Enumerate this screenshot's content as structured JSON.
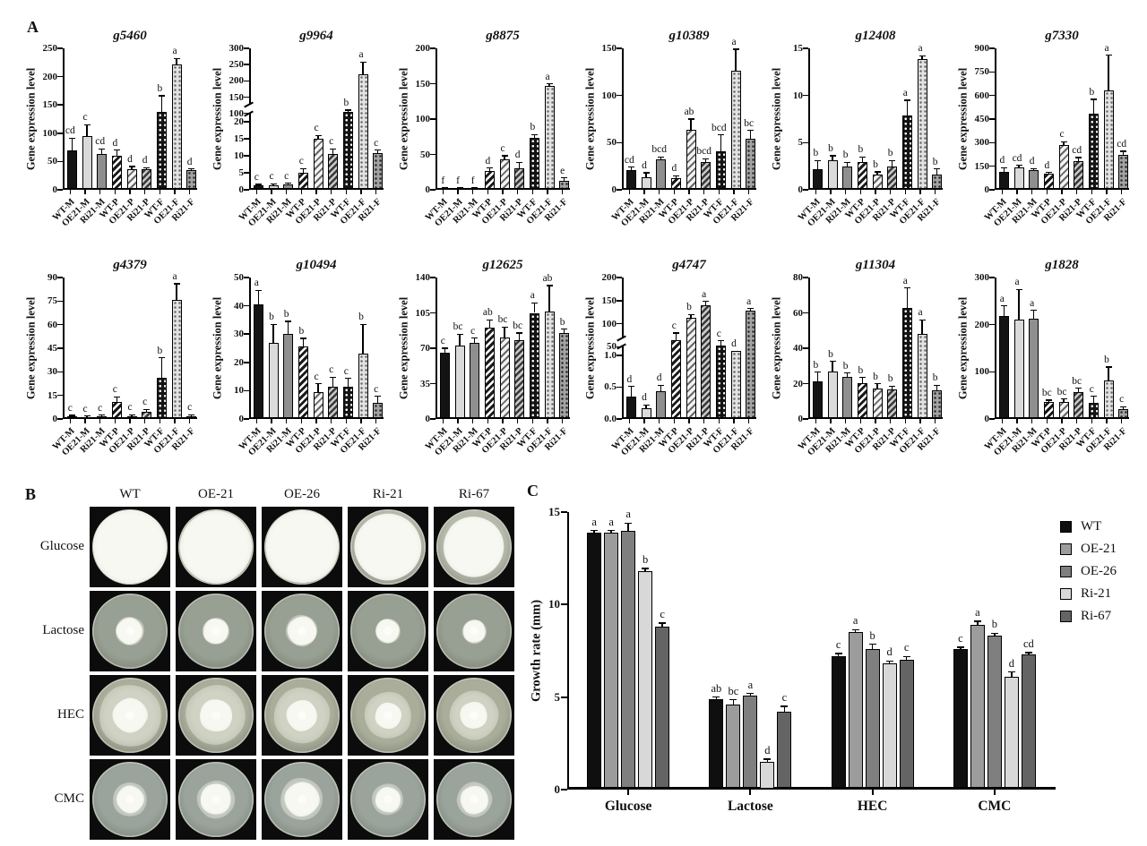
{
  "panels": {
    "a_label": "A",
    "b_label": "B",
    "c_label": "C"
  },
  "gene_expression_ylabel": "Gene expression level",
  "chart_data": [
    {
      "type": "bar",
      "title": "g5460",
      "ylabel": "Gene expression level",
      "categories": [
        "WT-M",
        "OE21-M",
        "Ri21-M",
        "WT-P",
        "OE21-P",
        "Ri21-P",
        "WT-F",
        "OE21-F",
        "Ri21-F"
      ],
      "segments": [
        {
          "min": 0,
          "max": 250,
          "frac": 1.0,
          "ticks": [
            0,
            50,
            100,
            150,
            200,
            250
          ]
        }
      ],
      "values": [
        70,
        95,
        64,
        60,
        37,
        37,
        138,
        222,
        35
      ],
      "errors": [
        21,
        20,
        8,
        10,
        4,
        2,
        28,
        10,
        2
      ],
      "letters": [
        "cd",
        "c",
        "cd",
        "d",
        "d",
        "d",
        "b",
        "a",
        "d"
      ]
    },
    {
      "type": "bar",
      "title": "g9964",
      "ylabel": "Gene expression level",
      "categories": [
        "WT-M",
        "OE21-M",
        "Ri21-M",
        "WT-P",
        "OE21-P",
        "Ri21-P",
        "WT-F",
        "OE21-F",
        "Ri21-F"
      ],
      "segments": [
        {
          "min": 0,
          "max": 20,
          "frac": 0.48,
          "ticks": [
            0,
            5,
            10,
            15,
            20
          ]
        },
        {
          "min": 100,
          "max": 300,
          "frac": 0.46,
          "ticks": [
            100,
            150,
            200,
            250,
            300
          ]
        }
      ],
      "values": [
        1.2,
        1.3,
        1.5,
        5,
        15,
        10.5,
        105,
        220,
        10.7
      ],
      "errors": [
        0.4,
        0.5,
        0.4,
        1.2,
        1,
        1.5,
        5,
        38,
        1
      ],
      "letters": [
        "c",
        "c",
        "c",
        "c",
        "c",
        "c",
        "b",
        "a",
        "c"
      ]
    },
    {
      "type": "bar",
      "title": "g8875",
      "ylabel": "Gene expression level",
      "categories": [
        "WT-M",
        "OE21-M",
        "Ri21-M",
        "WT-P",
        "OE21-P",
        "Ri21-P",
        "WT-F",
        "OE21-F",
        "Ri21-F"
      ],
      "segments": [
        {
          "min": 0,
          "max": 200,
          "frac": 1.0,
          "ticks": [
            0,
            50,
            100,
            150,
            200
          ]
        }
      ],
      "values": [
        2,
        2,
        2,
        27,
        43,
        31,
        74,
        147,
        13
      ],
      "errors": [
        1,
        1,
        1,
        4,
        5,
        8,
        4,
        3,
        4
      ],
      "letters": [
        "f",
        "f",
        "f",
        "d",
        "c",
        "d",
        "b",
        "a",
        "e"
      ]
    },
    {
      "type": "bar",
      "title": "g10389",
      "ylabel": "Gene expression level",
      "categories": [
        "WT-M",
        "OE21-M",
        "Ri21-M",
        "WT-P",
        "OE21-P",
        "Ri21-P",
        "WT-F",
        "OE21-F",
        "Ri21-F"
      ],
      "segments": [
        {
          "min": 0,
          "max": 150,
          "frac": 1.0,
          "ticks": [
            0,
            50,
            100,
            150
          ]
        }
      ],
      "values": [
        21,
        13,
        32,
        12,
        64,
        29,
        41,
        126,
        54
      ],
      "errors": [
        3,
        5,
        3,
        3,
        11,
        4,
        17,
        23,
        9
      ],
      "letters": [
        "cd",
        "d",
        "bcd",
        "d",
        "ab",
        "bcd",
        "bcd",
        "a",
        "bc"
      ]
    },
    {
      "type": "bar",
      "title": "g12408",
      "ylabel": "Gene expression level",
      "categories": [
        "WT-M",
        "OE21-M",
        "Ri21-M",
        "WT-P",
        "OE21-P",
        "Ri21-P",
        "WT-F",
        "OE21-F",
        "Ri21-F"
      ],
      "segments": [
        {
          "min": 0,
          "max": 15,
          "frac": 1.0,
          "ticks": [
            0,
            5,
            10,
            15
          ]
        }
      ],
      "values": [
        2.2,
        3.1,
        2.5,
        2.9,
        1.6,
        2.5,
        7.9,
        13.9,
        1.6
      ],
      "errors": [
        0.9,
        0.5,
        0.4,
        0.6,
        0.3,
        0.6,
        1.6,
        0.3,
        0.6
      ],
      "letters": [
        "b",
        "b",
        "b",
        "b",
        "b",
        "b",
        "a",
        "a",
        "b"
      ]
    },
    {
      "type": "bar",
      "title": "g7330",
      "ylabel": "Gene expression level",
      "categories": [
        "WT-M",
        "OE21-M",
        "Ri21-M",
        "WT-P",
        "OE21-P",
        "Ri21-P",
        "WT-F",
        "OE21-F",
        "Ri21-F"
      ],
      "segments": [
        {
          "min": 0,
          "max": 900,
          "frac": 1.0,
          "ticks": [
            0,
            150,
            300,
            450,
            600,
            750,
            900
          ]
        }
      ],
      "values": [
        115,
        140,
        125,
        100,
        285,
        185,
        485,
        635,
        220
      ],
      "errors": [
        25,
        15,
        10,
        10,
        20,
        20,
        90,
        220,
        25
      ],
      "letters": [
        "d",
        "cd",
        "d",
        "d",
        "c",
        "cd",
        "b",
        "a",
        "cd"
      ]
    },
    {
      "type": "bar",
      "title": "g4379",
      "ylabel": "Gene expression level",
      "categories": [
        "WT-M",
        "OE21-M",
        "Ri21-M",
        "WT-P",
        "OE21-P",
        "Ri21-P",
        "WT-F",
        "OE21-F",
        "Ri21-F"
      ],
      "segments": [
        {
          "min": 0,
          "max": 90,
          "frac": 1.0,
          "ticks": [
            0,
            15,
            30,
            45,
            60,
            75,
            90
          ]
        }
      ],
      "values": [
        1.5,
        1.3,
        1.8,
        11,
        1.8,
        4.5,
        26,
        76,
        1.8
      ],
      "errors": [
        0.8,
        0.5,
        0.6,
        3,
        0.8,
        1.5,
        13,
        10,
        0.8
      ],
      "letters": [
        "c",
        "c",
        "c",
        "c",
        "c",
        "c",
        "b",
        "a",
        "c"
      ]
    },
    {
      "type": "bar",
      "title": "g10494",
      "ylabel": "Gene expression level",
      "categories": [
        "WT-M",
        "OE21-M",
        "Ri21-M",
        "WT-P",
        "OE21-P",
        "Ri21-P",
        "WT-F",
        "OE21-F",
        "Ri21-F"
      ],
      "segments": [
        {
          "min": 0,
          "max": 50,
          "frac": 1.0,
          "ticks": [
            0,
            10,
            20,
            30,
            40,
            50
          ]
        }
      ],
      "values": [
        40.5,
        27,
        30,
        25.5,
        9.5,
        11.3,
        11.3,
        23,
        5.8
      ],
      "errors": [
        5,
        6.5,
        4.5,
        3,
        3,
        3.5,
        3,
        10.5,
        2.2
      ],
      "letters": [
        "a",
        "b",
        "b",
        "b",
        "c",
        "c",
        "c",
        "b",
        "c"
      ]
    },
    {
      "type": "bar",
      "title": "g12625",
      "ylabel": "Gene expression level",
      "categories": [
        "WT-M",
        "OE21-M",
        "Ri21-M",
        "WT-P",
        "OE21-P",
        "Ri21-P",
        "WT-F",
        "OE21-F",
        "Ri21-F"
      ],
      "segments": [
        {
          "min": 0,
          "max": 140,
          "frac": 1.0,
          "ticks": [
            0,
            35,
            70,
            105,
            140
          ]
        }
      ],
      "values": [
        66,
        73,
        75,
        90,
        81,
        78,
        105,
        106,
        85
      ],
      "errors": [
        4,
        11,
        5,
        8,
        10,
        7,
        10,
        26,
        4
      ],
      "letters": [
        "c",
        "bc",
        "c",
        "ab",
        "bc",
        "bc",
        "a",
        "ab",
        "b"
      ]
    },
    {
      "type": "bar",
      "title": "g4747",
      "ylabel": "Gene expression level",
      "categories": [
        "WT-M",
        "OE21-M",
        "Ri21-M",
        "WT-P",
        "OE21-P",
        "Ri21-P",
        "WT-F",
        "OE21-F",
        "Ri21-F"
      ],
      "segments": [
        {
          "min": 0,
          "max": 1.0,
          "frac": 0.45,
          "ticks": [
            0,
            0.5,
            1.0
          ],
          "tick_labels": [
            "0.0",
            "0.5",
            "1.0"
          ]
        },
        {
          "min": 50,
          "max": 200,
          "frac": 0.49,
          "ticks": [
            50,
            100,
            150,
            200
          ]
        }
      ],
      "values": [
        0.35,
        0.17,
        0.43,
        65,
        112,
        140,
        53,
        2,
        128
      ],
      "errors": [
        0.16,
        0.05,
        0.1,
        15,
        8,
        8,
        10,
        0,
        5
      ],
      "letters": [
        "d",
        "d",
        "d",
        "c",
        "b",
        "a",
        "c",
        "d",
        "a"
      ]
    },
    {
      "type": "bar",
      "title": "g11304",
      "ylabel": "Gene expression level",
      "categories": [
        "WT-M",
        "OE21-M",
        "Ri21-M",
        "WT-P",
        "OE21-P",
        "Ri21-P",
        "WT-F",
        "OE21-F",
        "Ri21-F"
      ],
      "segments": [
        {
          "min": 0,
          "max": 80,
          "frac": 1.0,
          "ticks": [
            0,
            20,
            40,
            60,
            80
          ]
        }
      ],
      "values": [
        21.5,
        27,
        24,
        20.5,
        17,
        16.5,
        63,
        48,
        16
      ],
      "errors": [
        5,
        5.5,
        2,
        3,
        3,
        2,
        11,
        8,
        3
      ],
      "letters": [
        "b",
        "b",
        "b",
        "b",
        "b",
        "b",
        "a",
        "a",
        "b"
      ]
    },
    {
      "type": "bar",
      "title": "g1828",
      "ylabel": "Gene expression level",
      "categories": [
        "WT-M",
        "OE21-M",
        "Ri21-M",
        "WT-P",
        "OE21-P",
        "Ri21-P",
        "WT-F",
        "OE21-F",
        "Ri21-F"
      ],
      "segments": [
        {
          "min": 0,
          "max": 300,
          "frac": 1.0,
          "ticks": [
            0,
            100,
            200,
            300
          ]
        }
      ],
      "values": [
        218,
        210,
        212,
        36,
        37,
        57,
        34,
        81,
        21
      ],
      "errors": [
        22,
        65,
        18,
        4,
        5,
        8,
        14,
        29,
        5
      ],
      "letters": [
        "a",
        "a",
        "a",
        "bc",
        "bc",
        "bc",
        "c",
        "b",
        "c"
      ]
    },
    {
      "type": "bar",
      "grouped": true,
      "title": "",
      "ylabel": "Growth rate (mm)",
      "ylim": [
        0,
        15
      ],
      "yticks": [
        0,
        5,
        10,
        15
      ],
      "categories": [
        "Glucose",
        "Lactose",
        "HEC",
        "CMC"
      ],
      "legend_position": "top-right",
      "series": [
        {
          "name": "WT",
          "color": "#0f0f0f",
          "values": [
            13.9,
            4.9,
            7.2,
            7.6
          ],
          "errors": [
            0.1,
            0.1,
            0.15,
            0.1
          ],
          "letters": [
            "a",
            "ab",
            "c",
            "c"
          ]
        },
        {
          "name": "OE-21",
          "color": "#9c9c9c",
          "values": [
            13.9,
            4.6,
            8.5,
            8.9
          ],
          "errors": [
            0.1,
            0.25,
            0.15,
            0.2
          ],
          "letters": [
            "a",
            "bc",
            "a",
            "a"
          ]
        },
        {
          "name": "OE-26",
          "color": "#7f7f7f",
          "values": [
            14.0,
            5.1,
            7.6,
            8.3
          ],
          "errors": [
            0.4,
            0.1,
            0.25,
            0.15
          ],
          "letters": [
            "a",
            "a",
            "b",
            "b"
          ]
        },
        {
          "name": "Ri-21",
          "color": "#d8d8d8",
          "values": [
            11.8,
            1.5,
            6.8,
            6.1
          ],
          "errors": [
            0.15,
            0.15,
            0.15,
            0.25
          ],
          "letters": [
            "b",
            "d",
            "d",
            "d"
          ]
        },
        {
          "name": "Ri-67",
          "color": "#646464",
          "values": [
            8.8,
            4.2,
            7.0,
            7.3
          ],
          "errors": [
            0.2,
            0.3,
            0.2,
            0.1
          ],
          "letters": [
            "c",
            "c",
            "c",
            "cd"
          ]
        }
      ]
    }
  ],
  "panel_b": {
    "columns": [
      "WT",
      "OE-21",
      "OE-26",
      "Ri-21",
      "Ri-67"
    ],
    "rows": [
      {
        "label": "Glucose",
        "style": "full",
        "agar": "#b6baad",
        "sizes": [
          0.97,
          0.95,
          0.97,
          0.88,
          0.8
        ]
      },
      {
        "label": "Lactose",
        "style": "blob",
        "agar": "#97a092",
        "sizes": [
          0.38,
          0.36,
          0.42,
          0.33,
          0.32
        ]
      },
      {
        "label": "HEC",
        "style": "flower",
        "agar": "#a9ad9a",
        "sizes": [
          0.82,
          0.78,
          0.74,
          0.62,
          0.64
        ]
      },
      {
        "label": "CMC",
        "style": "star",
        "agar": "#9aa49c",
        "sizes": [
          0.45,
          0.5,
          0.56,
          0.42,
          0.46
        ]
      }
    ]
  },
  "panel_c_legend": [
    "WT",
    "OE-21",
    "OE-26",
    "Ri-21",
    "Ri-67"
  ]
}
